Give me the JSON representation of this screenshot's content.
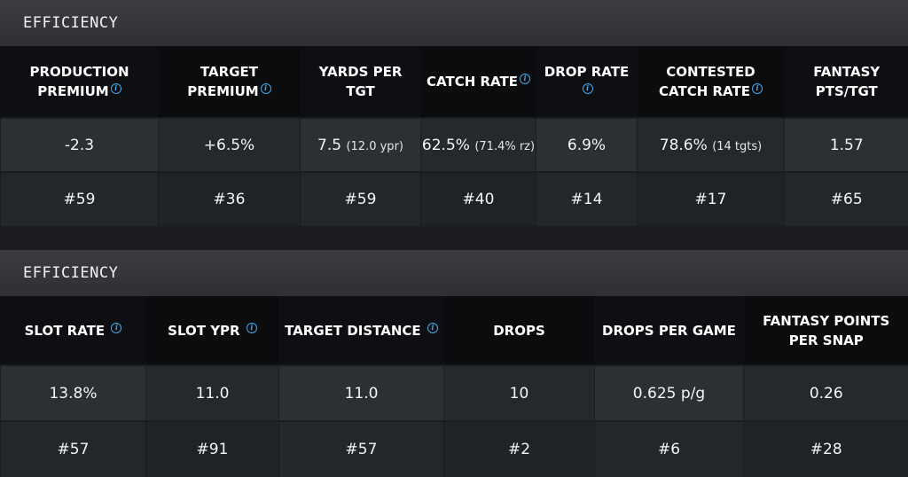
{
  "sections": [
    {
      "title": "EFFICIENCY",
      "columns": [
        {
          "label": "PRODUCTION PREMIUM",
          "info": true
        },
        {
          "label": "TARGET PREMIUM",
          "info": true
        },
        {
          "label": "YARDS PER TGT",
          "info": false
        },
        {
          "label": "CATCH RATE",
          "info": true
        },
        {
          "label": "DROP RATE",
          "info": true
        },
        {
          "label": "CONTESTED CATCH RATE",
          "info": true
        },
        {
          "label": "FANTASY PTS/TGT",
          "info": false
        }
      ],
      "values": [
        {
          "main": "-2.3",
          "sub": ""
        },
        {
          "main": "+6.5%",
          "sub": ""
        },
        {
          "main": "7.5",
          "sub": "(12.0 ypr)"
        },
        {
          "main": "62.5%",
          "sub": "(71.4% rz)"
        },
        {
          "main": "6.9%",
          "sub": ""
        },
        {
          "main": "78.6%",
          "sub": "(14 tgts)"
        },
        {
          "main": "1.57",
          "sub": ""
        }
      ],
      "ranks": [
        "#59",
        "#36",
        "#59",
        "#40",
        "#14",
        "#17",
        "#65"
      ]
    },
    {
      "title": "EFFICIENCY",
      "columns": [
        {
          "label": "SLOT RATE",
          "info": true
        },
        {
          "label": "SLOT YPR",
          "info": true
        },
        {
          "label": "TARGET DISTANCE",
          "info": true
        },
        {
          "label": "DROPS",
          "info": false
        },
        {
          "label": "DROPS PER GAME",
          "info": false
        },
        {
          "label": "FANTASY POINTS PER SNAP",
          "info": false
        }
      ],
      "values": [
        {
          "main": "13.8%",
          "sub": ""
        },
        {
          "main": "11.0",
          "sub": ""
        },
        {
          "main": "11.0",
          "sub": ""
        },
        {
          "main": "10",
          "sub": ""
        },
        {
          "main": "0.625 p/g",
          "sub": ""
        },
        {
          "main": "0.26",
          "sub": ""
        }
      ],
      "ranks": [
        "#57",
        "#91",
        "#57",
        "#2",
        "#6",
        "#28"
      ]
    }
  ],
  "colors": {
    "accent_info": "#4aa8e8",
    "header_bg": "#0d0f12",
    "row_bg": "#2c2f33"
  },
  "icons": {
    "info": "info-icon"
  }
}
